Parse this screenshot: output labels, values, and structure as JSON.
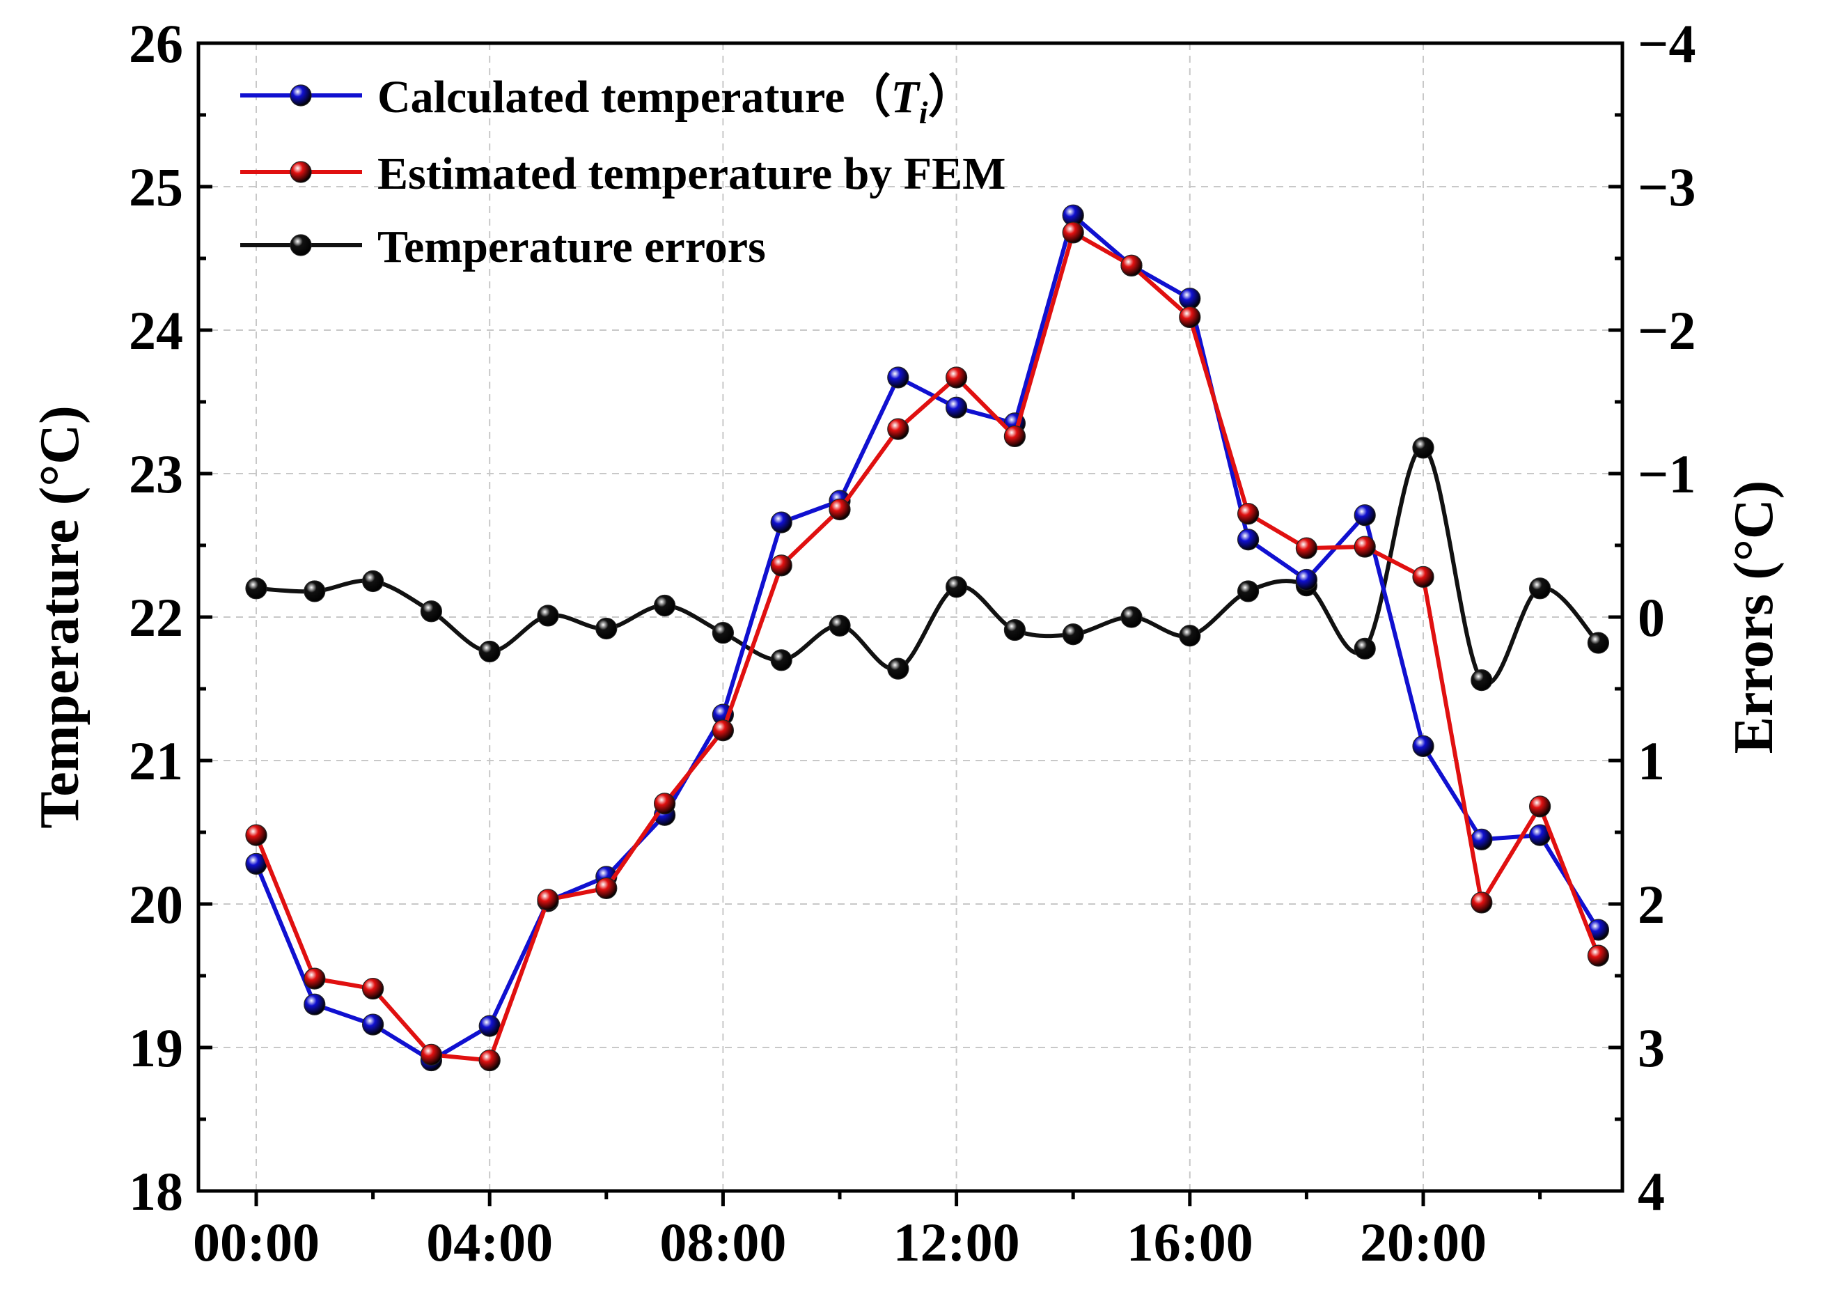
{
  "chart_data": {
    "type": "line",
    "x": [
      "00:00",
      "01:00",
      "02:00",
      "03:00",
      "04:00",
      "05:00",
      "06:00",
      "07:00",
      "08:00",
      "09:00",
      "10:00",
      "11:00",
      "12:00",
      "13:00",
      "14:00",
      "15:00",
      "16:00",
      "17:00",
      "18:00",
      "19:00",
      "20:00",
      "21:00",
      "22:00",
      "23:00"
    ],
    "x_tick_labels": [
      "00:00",
      "04:00",
      "08:00",
      "12:00",
      "16:00",
      "20:00"
    ],
    "y_tick_labels": [
      "18",
      "19",
      "20",
      "21",
      "22",
      "23",
      "24",
      "25",
      "26"
    ],
    "y2_tick_labels": [
      "−4",
      "−3",
      "−2",
      "−1",
      "0",
      "1",
      "2",
      "3",
      "4"
    ],
    "ylabel": "Temperature (°C)",
    "y2label": "Errors (°C)",
    "ylim": [
      18,
      26
    ],
    "y2lim": [
      4,
      -4
    ],
    "grid": true,
    "legend_position": "top-left",
    "series": [
      {
        "name": "Calculated temperature",
        "name_prefix": "Calculated temperature（",
        "name_italic": "T",
        "name_sub": "i",
        "name_suffix": "）",
        "axis": "left",
        "color": "#1010d0",
        "values": [
          20.28,
          19.3,
          19.16,
          18.91,
          19.15,
          20.02,
          20.19,
          20.62,
          21.32,
          22.66,
          22.81,
          23.67,
          23.46,
          23.35,
          24.8,
          24.45,
          24.22,
          22.54,
          22.26,
          22.71,
          21.1,
          20.45,
          20.48,
          19.82
        ]
      },
      {
        "name": "Estimated temperature by FEM",
        "axis": "left",
        "color": "#e01010",
        "values": [
          20.48,
          19.48,
          19.41,
          18.95,
          18.91,
          20.03,
          20.11,
          20.7,
          21.21,
          22.36,
          22.75,
          23.31,
          23.67,
          23.26,
          24.68,
          24.45,
          24.09,
          22.72,
          22.48,
          22.49,
          22.28,
          20.01,
          20.68,
          19.64
        ]
      },
      {
        "name": "Temperature errors",
        "axis": "right",
        "color": "#111111",
        "values": [
          -0.2,
          -0.18,
          -0.25,
          -0.04,
          0.24,
          -0.01,
          0.08,
          -0.08,
          0.11,
          0.3,
          0.06,
          0.36,
          -0.21,
          0.09,
          0.12,
          0.0,
          0.13,
          -0.18,
          -0.22,
          0.22,
          -1.18,
          0.44,
          -0.2,
          0.18
        ]
      }
    ]
  }
}
